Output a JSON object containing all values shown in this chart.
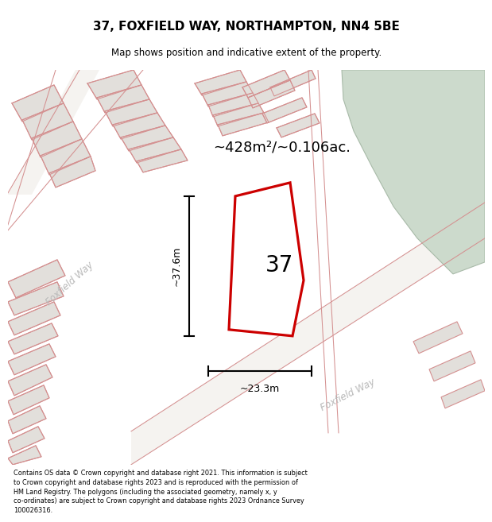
{
  "title_line1": "37, FOXFIELD WAY, NORTHAMPTON, NN4 5BE",
  "title_line2": "Map shows position and indicative extent of the property.",
  "area_label": "~428m²/~0.106ac.",
  "dim_height": "~37.6m",
  "dim_width": "~23.3m",
  "house_number": "37",
  "road_label_left": "Foxfield Way",
  "road_label_bottom": "Foxfield Way",
  "footer": "Contains OS data © Crown copyright and database right 2021. This information is subject\nto Crown copyright and database rights 2023 and is reproduced with the permission of\nHM Land Registry. The polygons (including the associated geometry, namely x, y\nco-ordinates) are subject to Crown copyright and database rights 2023 Ordnance Survey\n100026316.",
  "map_bg": "#eeece8",
  "building_fill": "#e2dfdb",
  "building_edge": "#d49090",
  "green_fill": "#ccdacc",
  "green_edge": "#a8baa8",
  "property_fill": "#ffffff",
  "property_edge": "#cc0000",
  "road_label_color": "#b8b8b8",
  "dim_color": "#000000",
  "title_bg": "#ffffff",
  "footer_bg": "#ffffff"
}
